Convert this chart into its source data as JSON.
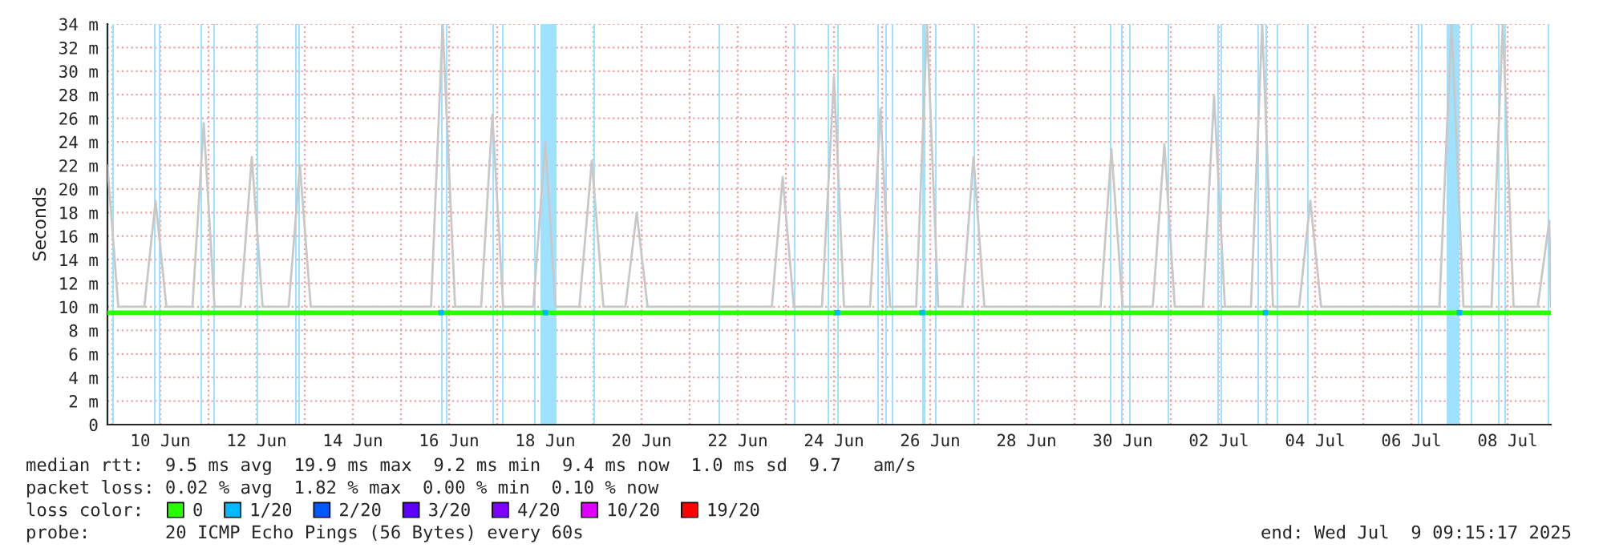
{
  "chart_data": {
    "type": "line",
    "ylabel": "Seconds",
    "xlim": [
      "2025-06-08T21:36",
      "2025-07-08T21:36"
    ],
    "xticks": [
      {
        "value": "2025-06-09",
        "label": null
      },
      {
        "value": "2025-06-10",
        "label": "10 Jun"
      },
      {
        "value": "2025-06-11",
        "label": null
      },
      {
        "value": "2025-06-12",
        "label": "12 Jun"
      },
      {
        "value": "2025-06-13",
        "label": null
      },
      {
        "value": "2025-06-14",
        "label": "14 Jun"
      },
      {
        "value": "2025-06-15",
        "label": null
      },
      {
        "value": "2025-06-16",
        "label": "16 Jun"
      },
      {
        "value": "2025-06-17",
        "label": null
      },
      {
        "value": "2025-06-18",
        "label": "18 Jun"
      },
      {
        "value": "2025-06-19",
        "label": null
      },
      {
        "value": "2025-06-20",
        "label": "20 Jun"
      },
      {
        "value": "2025-06-21",
        "label": null
      },
      {
        "value": "2025-06-22",
        "label": "22 Jun"
      },
      {
        "value": "2025-06-23",
        "label": null
      },
      {
        "value": "2025-06-24",
        "label": "24 Jun"
      },
      {
        "value": "2025-06-25",
        "label": null
      },
      {
        "value": "2025-06-26",
        "label": "26 Jun"
      },
      {
        "value": "2025-06-27",
        "label": null
      },
      {
        "value": "2025-06-28",
        "label": "28 Jun"
      },
      {
        "value": "2025-06-29",
        "label": null
      },
      {
        "value": "2025-06-30",
        "label": "30 Jun"
      },
      {
        "value": "2025-07-01",
        "label": null
      },
      {
        "value": "2025-07-02",
        "label": "02 Jul"
      },
      {
        "value": "2025-07-03",
        "label": null
      },
      {
        "value": "2025-07-04",
        "label": "04 Jul"
      },
      {
        "value": "2025-07-05",
        "label": null
      },
      {
        "value": "2025-07-06",
        "label": "06 Jul"
      },
      {
        "value": "2025-07-07",
        "label": null
      },
      {
        "value": "2025-07-08",
        "label": "08 Jul"
      }
    ],
    "ylim": [
      0,
      34
    ],
    "yticks": [
      0,
      {
        "value": 2,
        "label": "2 m"
      },
      {
        "value": 4,
        "label": "4 m"
      },
      {
        "value": 6,
        "label": "6 m"
      },
      {
        "value": 8,
        "label": "8 m"
      },
      {
        "value": 10,
        "label": "10 m"
      },
      {
        "value": 12,
        "label": "12 m"
      },
      {
        "value": 14,
        "label": "14 m"
      },
      {
        "value": 16,
        "label": "16 m"
      },
      {
        "value": 18,
        "label": "18 m"
      },
      {
        "value": 20,
        "label": "20 m"
      },
      {
        "value": 22,
        "label": "22 m"
      },
      {
        "value": 24,
        "label": "24 m"
      },
      {
        "value": 26,
        "label": "26 m"
      },
      {
        "value": 28,
        "label": "28 m"
      },
      {
        "value": 30,
        "label": "30 m"
      },
      {
        "value": 32,
        "label": "32 m"
      },
      {
        "value": 34,
        "label": "34 m"
      }
    ],
    "grid": true,
    "legend": "bottom",
    "series": [
      {
        "color": "#c8c8c8",
        "x": [
          "2025-06-08T21:36",
          "2025-06-09T03:00",
          "2025-06-09T16:00",
          "2025-06-09T21:36",
          "2025-06-10T03:00",
          "2025-06-10T16:00",
          "2025-06-10T21:36",
          "2025-06-11T03:00",
          "2025-06-11T16:00",
          "2025-06-11T21:36",
          "2025-06-12T03:00",
          "2025-06-12T16:00",
          "2025-06-12T21:36",
          "2025-06-13T03:00",
          "2025-06-15T15:00",
          "2025-06-15T20:48",
          "2025-06-16T03:00",
          "2025-06-16T16:00",
          "2025-06-16T21:36",
          "2025-06-17T03:00",
          "2025-06-17T18:00",
          "2025-06-18T00:00",
          "2025-06-18T05:00",
          "2025-06-18T17:00",
          "2025-06-18T23:12",
          "2025-06-19T05:00",
          "2025-06-19T16:00",
          "2025-06-19T21:36",
          "2025-06-20T03:00",
          "2025-06-22T17:00",
          "2025-06-22T22:24",
          "2025-06-23T04:00",
          "2025-06-23T18:00",
          "2025-06-24T00:00",
          "2025-06-24T05:00",
          "2025-06-24T18:00",
          "2025-06-24T23:12",
          "2025-06-25T04:00",
          "2025-06-25T17:00",
          "2025-06-25T22:24",
          "2025-06-26T04:00",
          "2025-06-26T16:00",
          "2025-06-26T21:36",
          "2025-06-27T03:00",
          "2025-06-29T13:00",
          "2025-06-29T18:24",
          "2025-06-30T00:00",
          "2025-06-30T15:00",
          "2025-06-30T20:48",
          "2025-07-01T02:00",
          "2025-07-01T16:00",
          "2025-07-01T21:36",
          "2025-07-02T03:00",
          "2025-07-02T16:00",
          "2025-07-02T21:36",
          "2025-07-03T03:00",
          "2025-07-03T16:00",
          "2025-07-03T21:36",
          "2025-07-04T03:00",
          "2025-07-06T14:00",
          "2025-07-06T20:00",
          "2025-07-07T02:00",
          "2025-07-07T16:00",
          "2025-07-07T21:36",
          "2025-07-08T03:00",
          "2025-07-08T15:00",
          "2025-07-08T20:48",
          "2025-07-08T21:36"
        ],
        "values": [
          22,
          10,
          10,
          19,
          10,
          10,
          25.6,
          10,
          10,
          22.7,
          10,
          10,
          22,
          10,
          10,
          34,
          10,
          10,
          26.3,
          10,
          10,
          24,
          10,
          10,
          22.4,
          10,
          10,
          18,
          10,
          10,
          21,
          10,
          10,
          29.5,
          10,
          10,
          26.8,
          10,
          10,
          34,
          10,
          10,
          22.7,
          10,
          10,
          23.4,
          10,
          10,
          23.8,
          10,
          10,
          27.9,
          10,
          10,
          34,
          10,
          10,
          19,
          10,
          10,
          34,
          10,
          10,
          34,
          10,
          10,
          17.3,
          10
        ]
      },
      {
        "name": "0",
        "color": "#26ff00",
        "x": [
          "2025-06-08T21:36",
          "2025-07-08T21:36"
        ],
        "values": [
          9.5,
          9.5
        ]
      },
      {
        "type": "scatter",
        "name": "1/20",
        "color": "#00b8ff",
        "x": [
          "2025-06-15T20:00",
          "2025-06-18T00:00",
          "2025-06-24T01:36",
          "2025-06-25T20:00",
          "2025-07-02T23:12",
          "2025-07-07T00:00"
        ],
        "values": [
          9.5,
          9.5,
          9.5,
          9.5,
          9.5,
          9.5
        ]
      },
      {
        "type": "scatter",
        "name": "2/20",
        "color": "#0059ff"
      },
      {
        "type": "scatter",
        "name": "3/20",
        "color": "#5e00ff"
      },
      {
        "type": "scatter",
        "name": "4/20",
        "color": "#7e00ff"
      },
      {
        "type": "scatter",
        "name": "10/20",
        "color": "#dd00ff"
      },
      {
        "type": "scatter",
        "name": "19/20",
        "color": "#ff0000"
      }
    ],
    "bands": [
      {
        "axis": "x",
        "from": "2025-06-09T00:00",
        "to": "2025-06-09T00:48",
        "color": "#9fe2ff"
      },
      {
        "axis": "x",
        "from": "2025-06-09T20:48",
        "to": "2025-06-09T21:36",
        "color": "#9fe2ff"
      },
      {
        "axis": "x",
        "from": "2025-06-09T23:12",
        "to": "2025-06-10T00:00",
        "color": "#9fe2ff"
      },
      {
        "axis": "x",
        "from": "2025-06-10T20:00",
        "to": "2025-06-10T20:48",
        "color": "#9fe2ff"
      },
      {
        "axis": "x",
        "from": "2025-06-11T02:24",
        "to": "2025-06-11T03:12",
        "color": "#9fe2ff"
      },
      {
        "axis": "x",
        "from": "2025-06-12T00:00",
        "to": "2025-06-12T00:48",
        "color": "#9fe2ff"
      },
      {
        "axis": "x",
        "from": "2025-06-12T19:12",
        "to": "2025-06-12T20:00",
        "color": "#9fe2ff"
      },
      {
        "axis": "x",
        "from": "2025-06-12T20:48",
        "to": "2025-06-12T21:36",
        "color": "#9fe2ff"
      },
      {
        "axis": "x",
        "from": "2025-06-15T20:00",
        "to": "2025-06-15T20:48",
        "color": "#9fe2ff"
      },
      {
        "axis": "x",
        "from": "2025-06-15T22:24",
        "to": "2025-06-15T23:12",
        "color": "#9fe2ff"
      },
      {
        "axis": "x",
        "from": "2025-06-16T21:36",
        "to": "2025-06-16T22:24",
        "color": "#9fe2ff"
      },
      {
        "axis": "x",
        "from": "2025-06-17T02:24",
        "to": "2025-06-17T03:12",
        "color": "#9fe2ff"
      },
      {
        "axis": "x",
        "from": "2025-06-17T18:24",
        "to": "2025-06-17T19:12",
        "color": "#9fe2ff"
      },
      {
        "axis": "x",
        "from": "2025-06-17T21:36",
        "to": "2025-06-18T05:36",
        "color": "#9fe2ff"
      },
      {
        "axis": "x",
        "from": "2025-06-19T00:00",
        "to": "2025-06-19T00:48",
        "color": "#9fe2ff"
      },
      {
        "axis": "x",
        "from": "2025-06-21T14:24",
        "to": "2025-06-21T15:12",
        "color": "#9fe2ff"
      },
      {
        "axis": "x",
        "from": "2025-06-23T04:00",
        "to": "2025-06-23T04:48",
        "color": "#9fe2ff"
      },
      {
        "axis": "x",
        "from": "2025-06-23T20:48",
        "to": "2025-06-23T21:36",
        "color": "#9fe2ff"
      },
      {
        "axis": "x",
        "from": "2025-06-24T01:36",
        "to": "2025-06-24T02:24",
        "color": "#9fe2ff"
      },
      {
        "axis": "x",
        "from": "2025-06-24T21:36",
        "to": "2025-06-24T22:24",
        "color": "#9fe2ff"
      },
      {
        "axis": "x",
        "from": "2025-06-25T01:36",
        "to": "2025-06-25T02:24",
        "color": "#9fe2ff"
      },
      {
        "axis": "x",
        "from": "2025-06-25T04:48",
        "to": "2025-06-25T05:36",
        "color": "#9fe2ff"
      },
      {
        "axis": "x",
        "from": "2025-06-25T20:00",
        "to": "2025-06-25T21:36",
        "color": "#9fe2ff"
      },
      {
        "axis": "x",
        "from": "2025-06-26T02:24",
        "to": "2025-06-26T03:12",
        "color": "#9fe2ff"
      },
      {
        "axis": "x",
        "from": "2025-06-26T21:36",
        "to": "2025-06-26T22:24",
        "color": "#9fe2ff"
      },
      {
        "axis": "x",
        "from": "2025-06-29T17:36",
        "to": "2025-06-29T18:24",
        "color": "#9fe2ff"
      },
      {
        "axis": "x",
        "from": "2025-06-29T23:12",
        "to": "2025-06-30T00:00",
        "color": "#9fe2ff"
      },
      {
        "axis": "x",
        "from": "2025-06-30T03:12",
        "to": "2025-06-30T04:00",
        "color": "#9fe2ff"
      },
      {
        "axis": "x",
        "from": "2025-06-30T22:24",
        "to": "2025-06-30T23:12",
        "color": "#9fe2ff"
      },
      {
        "axis": "x",
        "from": "2025-07-01T23:12",
        "to": "2025-07-02T00:00",
        "color": "#9fe2ff"
      },
      {
        "axis": "x",
        "from": "2025-07-02T00:48",
        "to": "2025-07-02T01:36",
        "color": "#9fe2ff"
      },
      {
        "axis": "x",
        "from": "2025-07-02T19:12",
        "to": "2025-07-02T20:00",
        "color": "#9fe2ff"
      },
      {
        "axis": "x",
        "from": "2025-07-02T23:12",
        "to": "2025-07-03T00:00",
        "color": "#9fe2ff"
      },
      {
        "axis": "x",
        "from": "2025-07-03T04:48",
        "to": "2025-07-03T05:36",
        "color": "#9fe2ff"
      },
      {
        "axis": "x",
        "from": "2025-07-03T20:00",
        "to": "2025-07-03T20:48",
        "color": "#9fe2ff"
      },
      {
        "axis": "x",
        "from": "2025-07-06T03:12",
        "to": "2025-07-06T04:00",
        "color": "#9fe2ff"
      },
      {
        "axis": "x",
        "from": "2025-07-06T04:48",
        "to": "2025-07-06T05:36",
        "color": "#9fe2ff"
      },
      {
        "axis": "x",
        "from": "2025-07-06T17:36",
        "to": "2025-07-07T00:00",
        "color": "#9fe2ff"
      },
      {
        "axis": "x",
        "from": "2025-07-07T05:36",
        "to": "2025-07-07T06:24",
        "color": "#9fe2ff"
      },
      {
        "axis": "x",
        "from": "2025-07-07T19:12",
        "to": "2025-07-07T20:00",
        "color": "#9fe2ff"
      },
      {
        "axis": "x",
        "from": "2025-07-07T22:24",
        "to": "2025-07-07T23:12",
        "color": "#9fe2ff"
      },
      {
        "axis": "x",
        "from": "2025-07-08T20:00",
        "to": "2025-07-08T20:48",
        "color": "#9fe2ff"
      }
    ],
    "annotations": [
      "median rtt:  9.5 ms avg  19.9 ms max  9.2 ms min  9.4 ms now  1.0 ms sd  9.7   am/s",
      "packet loss: 0.02 % avg  1.82 % max  0.00 % min  0.10 % now",
      "loss color:",
      "probe:       20 ICMP Echo Pings (56 Bytes) every 60s",
      "end: Wed Jul  9 09:15:17 2025"
    ]
  }
}
